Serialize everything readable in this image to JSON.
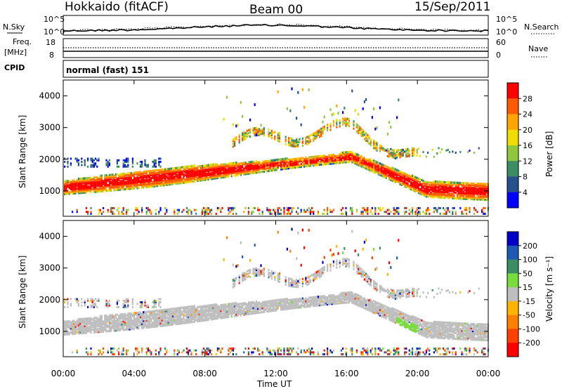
{
  "header": {
    "station": "Hokkaido (fitACF)",
    "beam": "Beam 00",
    "date": "15/Sep/2011"
  },
  "panels": {
    "nsky": {
      "label": "N.Sky",
      "right_label": "N.Search",
      "ticks_left": [
        "10^5",
        "10^0"
      ],
      "ticks_right": [
        "10^5",
        "10^0"
      ]
    },
    "freq": {
      "label": "Freq.",
      "unit": "[MHz]",
      "right_label": "Nave",
      "ticks_left": [
        "18",
        "8"
      ],
      "ticks_right": [
        "60",
        "0"
      ]
    },
    "cpid": {
      "label": "CPID",
      "text": "normal (fast) 151"
    }
  },
  "chart_data": [
    {
      "type": "heatmap",
      "name": "power",
      "ylabel": "Slant Range [km]",
      "yticks": [
        "1000",
        "2000",
        "3000",
        "4000"
      ],
      "ylim": [
        200,
        4500
      ],
      "colorbar": {
        "label": "Power [dB]",
        "ticks": [
          "28",
          "24",
          "20",
          "16",
          "12",
          "8",
          "4"
        ],
        "colors": [
          "#ff0000",
          "#ff5a00",
          "#ffa500",
          "#f0dc00",
          "#8fc83c",
          "#3c8c64",
          "#28508c",
          "#0000ff"
        ]
      }
    },
    {
      "type": "heatmap",
      "name": "velocity",
      "ylabel": "Slant Range [km]",
      "yticks": [
        "1000",
        "2000",
        "3000",
        "4000"
      ],
      "ylim": [
        200,
        4500
      ],
      "colorbar": {
        "label": "Velocity [m s⁻¹]",
        "ticks": [
          "200",
          "100",
          "50",
          "15",
          "-15",
          "-50",
          "-100",
          "-200"
        ],
        "colors": [
          "#0000c8",
          "#1e5ab4",
          "#3c8c64",
          "#78dc3c",
          "#bebebe",
          "#ffb400",
          "#ff8000",
          "#ff4000",
          "#ff0000"
        ]
      }
    }
  ],
  "xaxis": {
    "label": "Time UT",
    "ticks": [
      "00:00",
      "04:00",
      "08:00",
      "12:00",
      "16:00",
      "20:00",
      "00:00"
    ]
  }
}
